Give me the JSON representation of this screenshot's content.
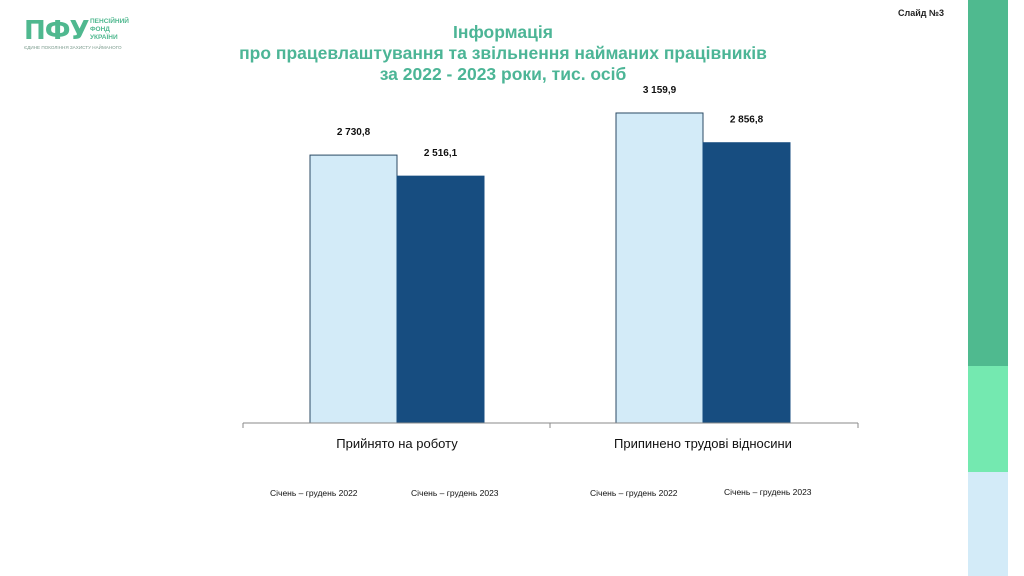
{
  "logo": {
    "abbr": "ПФУ",
    "name_lines": [
      "ПЕНСІЙНИЙ",
      "ФОНД",
      "УКРАЇНИ"
    ],
    "tagline": "ЄДИНЕ ПОКОЛІННЯ ЗАХИСТУ НАЙМАНОГО"
  },
  "slide_number": "Слайд №3",
  "title_lines": [
    "Інформація",
    "про працевлаштування та звільнення найманих працівників",
    "за 2022 - 2023  роки,  тис. осіб"
  ],
  "colors": {
    "title": "#4cb596",
    "series_2022": "#d3ebf8",
    "series_2023": "#174d80",
    "sidebar_top": "#4fba8f",
    "sidebar_mid": "#74e9b0",
    "sidebar_bottom": "#d3ebf8"
  },
  "chart_data": {
    "type": "bar",
    "categories": [
      "Прийнято на роботу",
      "Припинено трудові відносини"
    ],
    "series": [
      {
        "name": "Січень – грудень 2022",
        "values": [
          2730.8,
          3159.9
        ],
        "labels": [
          "2 730,8",
          "3 159,9"
        ],
        "color": "#d3ebf8"
      },
      {
        "name": "Січень – грудень 2023",
        "values": [
          2516.1,
          2856.8
        ],
        "labels": [
          "2 516,1",
          "2 856,8"
        ],
        "color": "#174d80"
      }
    ],
    "ylim": [
      0,
      3700
    ],
    "legend_position": "bottom",
    "grid": false
  }
}
